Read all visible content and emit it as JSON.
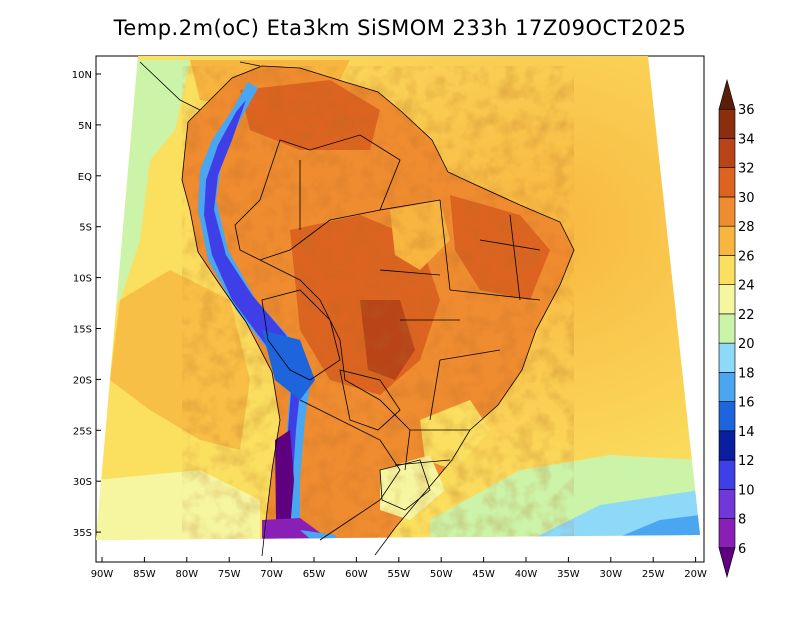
{
  "title": "Temp.2m(oC) Eta3km SiSMOM 233h 17Z09OCT2025",
  "map": {
    "lat_labels": [
      "10N",
      "5N",
      "EQ",
      "5S",
      "10S",
      "15S",
      "20S",
      "25S",
      "30S",
      "35S"
    ],
    "lon_labels": [
      "90W",
      "85W",
      "80W",
      "75W",
      "70W",
      "65W",
      "60W",
      "55W",
      "50W",
      "45W",
      "40W",
      "35W",
      "30W",
      "25W",
      "20W"
    ],
    "extent": {
      "lon": [
        -91,
        -20
      ],
      "lat": [
        -38,
        11
      ]
    }
  },
  "colorbar": {
    "labels": [
      "6",
      "8",
      "10",
      "12",
      "14",
      "16",
      "18",
      "20",
      "22",
      "24",
      "26",
      "28",
      "30",
      "32",
      "34",
      "36"
    ],
    "colors": [
      "#5e0080",
      "#8a1fb8",
      "#7038d8",
      "#3f3fe8",
      "#0a1ea0",
      "#1e64dc",
      "#4aa6f0",
      "#8ed8f8",
      "#ccf4a8",
      "#f6f6a0",
      "#fbe060",
      "#f8b640",
      "#f08c30",
      "#dc6420",
      "#b84418",
      "#8a2e0e",
      "#5a1e08"
    ]
  }
}
